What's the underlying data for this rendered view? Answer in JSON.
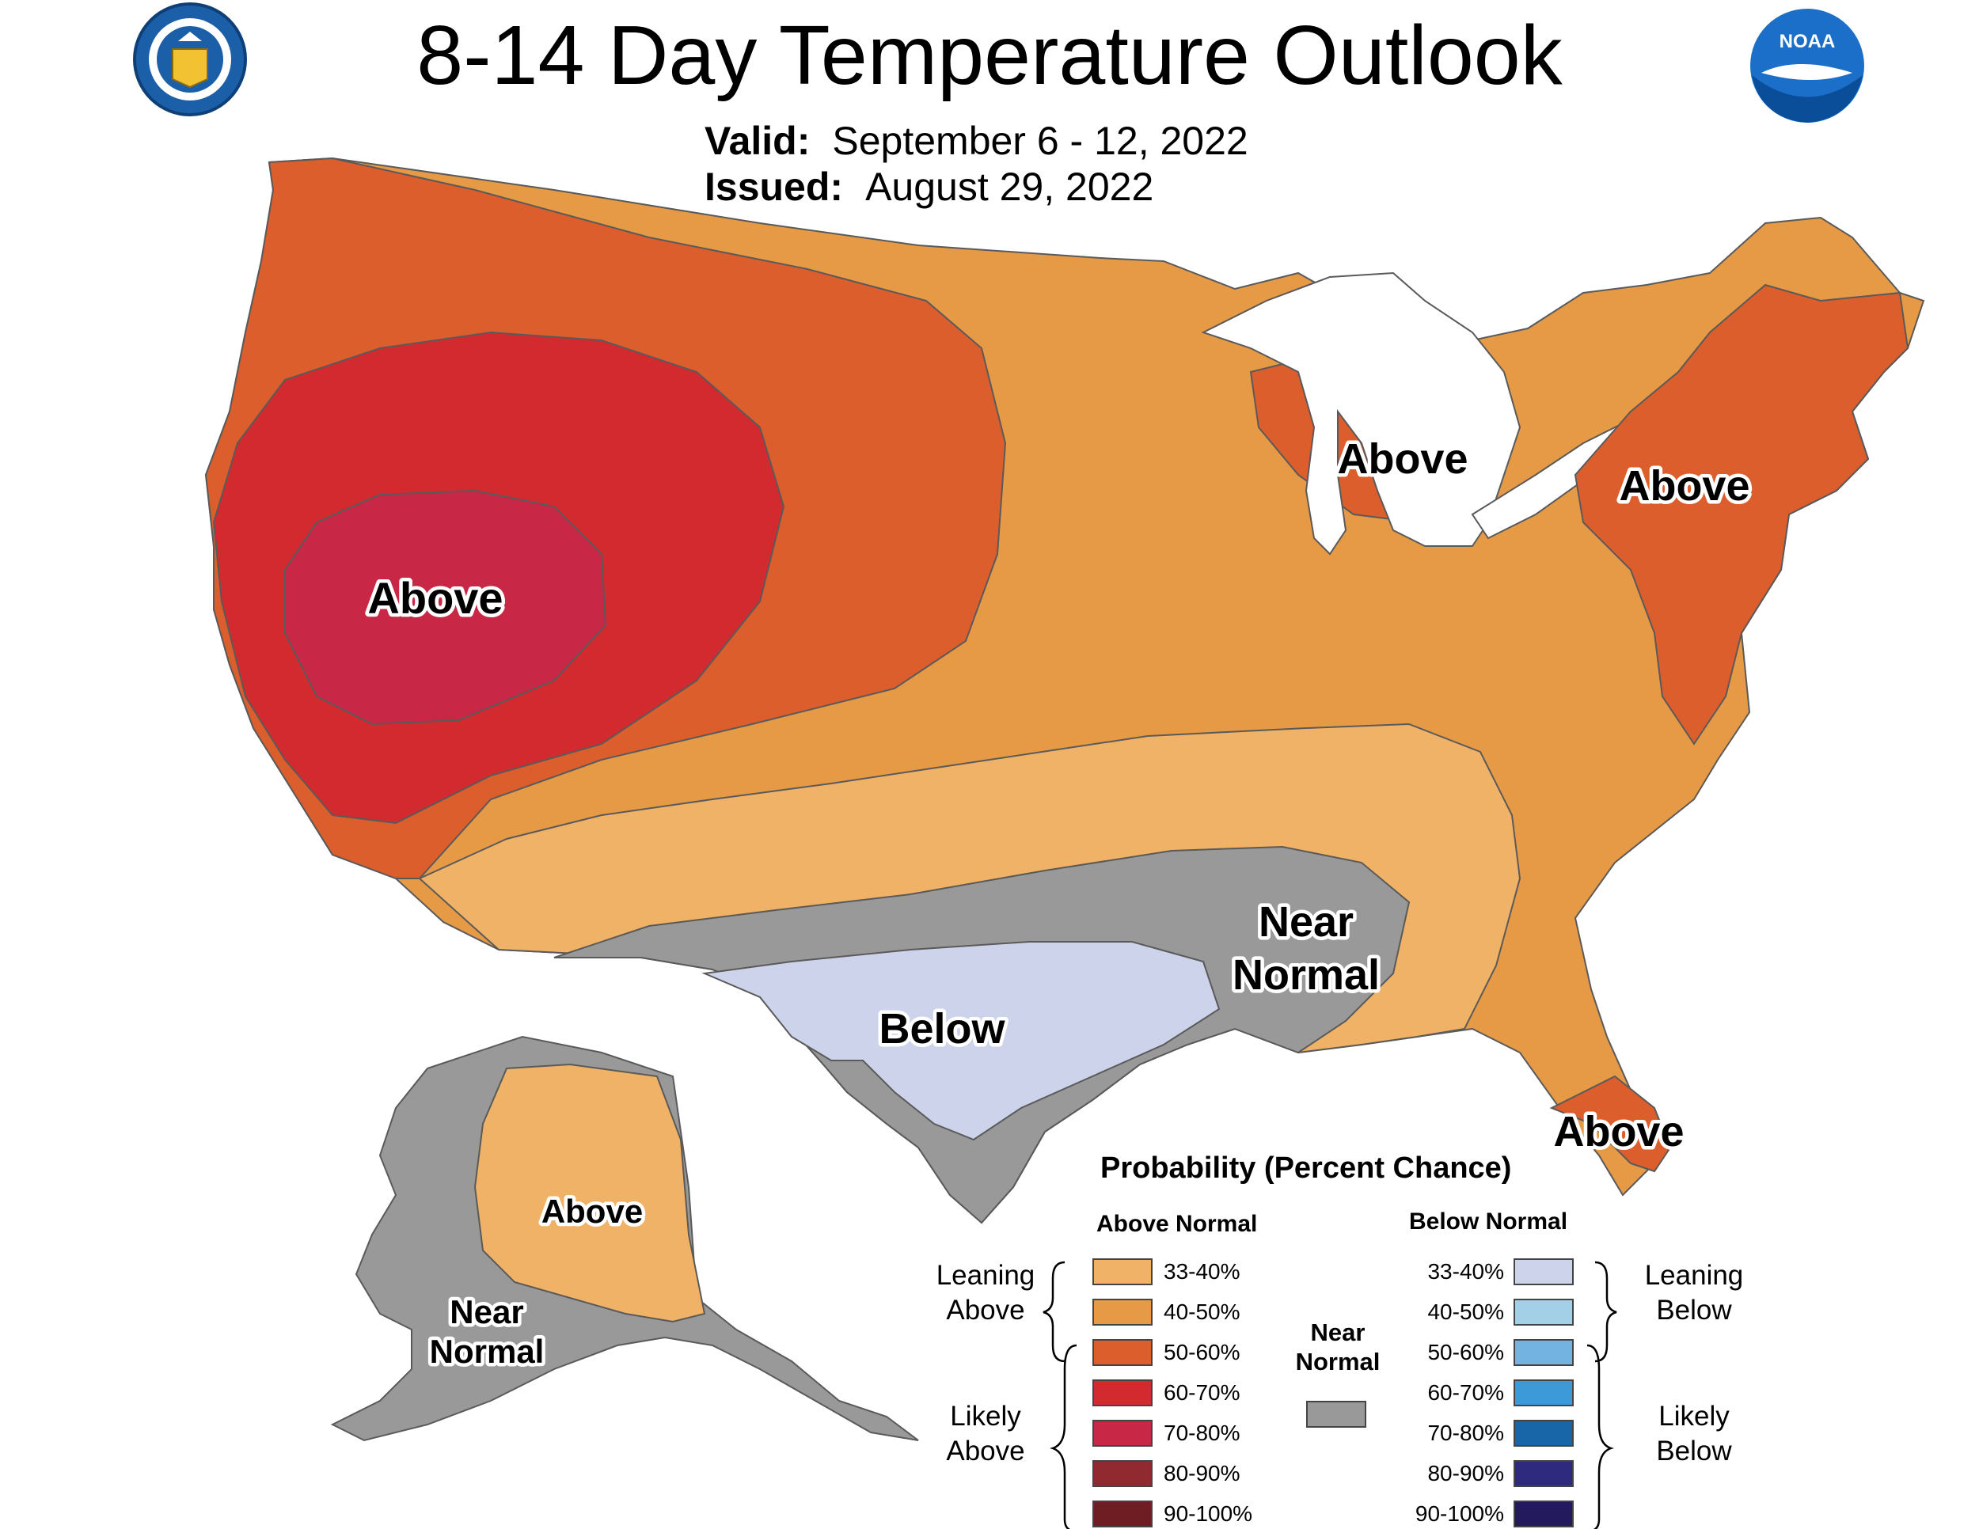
{
  "header": {
    "title": "8-14 Day Temperature Outlook",
    "valid_label": "Valid:",
    "valid_value": "September 6 - 12, 2022",
    "issued_label": "Issued:",
    "issued_value": "August 29, 2022"
  },
  "logos": {
    "left": "doc-seal-icon",
    "right": "noaa-logo-icon"
  },
  "map_labels": {
    "west": "Above",
    "great_lakes": "Above",
    "northeast": "Above",
    "south_central_near1": "Near",
    "south_central_near2": "Normal",
    "texas": "Below",
    "florida": "Above",
    "alaska_above": "Above",
    "alaska_near1": "Near",
    "alaska_near2": "Normal"
  },
  "legend": {
    "title": "Probability (Percent Chance)",
    "above_header": "Above Normal",
    "below_header": "Below Normal",
    "leaning_above": [
      "Leaning",
      "Above"
    ],
    "likely_above": [
      "Likely",
      "Above"
    ],
    "leaning_below": [
      "Leaning",
      "Below"
    ],
    "likely_below": [
      "Likely",
      "Below"
    ],
    "near_normal": [
      "Near",
      "Normal"
    ],
    "near_normal_color": "#999999",
    "above": [
      {
        "range": "33-40%",
        "color": "#F0B266"
      },
      {
        "range": "40-50%",
        "color": "#E69A46"
      },
      {
        "range": "50-60%",
        "color": "#DB5E2C"
      },
      {
        "range": "60-70%",
        "color": "#D22A2E"
      },
      {
        "range": "70-80%",
        "color": "#C82845"
      },
      {
        "range": "80-90%",
        "color": "#902A30"
      },
      {
        "range": "90-100%",
        "color": "#6E1E22"
      }
    ],
    "below": [
      {
        "range": "33-40%",
        "color": "#CDD3EA"
      },
      {
        "range": "40-50%",
        "color": "#A3D0E6"
      },
      {
        "range": "50-60%",
        "color": "#73B3E2"
      },
      {
        "range": "60-70%",
        "color": "#3D9AD8"
      },
      {
        "range": "70-80%",
        "color": "#1866A8"
      },
      {
        "range": "80-90%",
        "color": "#2E2A7E"
      },
      {
        "range": "90-100%",
        "color": "#221A5C"
      }
    ]
  }
}
